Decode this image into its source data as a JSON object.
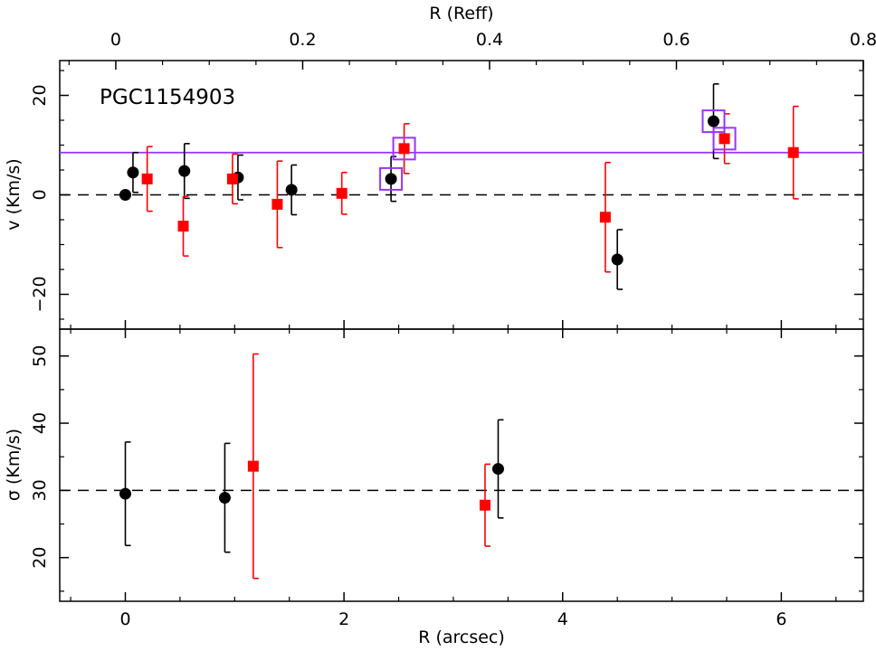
{
  "chart_data": {
    "type": "scatter",
    "object_label": "PGC1154903",
    "top_axis": {
      "label": "R (Reff)",
      "ticks": [
        "0",
        "0.2",
        "0.4",
        "0.6",
        "0.8"
      ],
      "tick_values": [
        0,
        0.2,
        0.4,
        0.6,
        0.8
      ],
      "xlim": [
        -0.06,
        0.8
      ]
    },
    "bottom_axis": {
      "label": "R (arcsec)",
      "ticks": [
        "0",
        "2",
        "4",
        "6"
      ],
      "tick_values": [
        0,
        2,
        4,
        6
      ],
      "xlim": [
        -0.6,
        6.75
      ]
    },
    "panels": [
      {
        "id": "velocity",
        "ylabel": "v (Km/s)",
        "ylim": [
          -27,
          27
        ],
        "yticks": [
          "−20",
          "0",
          "20"
        ],
        "ytick_values": [
          -20,
          0,
          20
        ],
        "reference_line": 0,
        "fit_line": 8.5,
        "fit_line_color": "#9933ff",
        "series": [
          {
            "marker": "circle",
            "color": "#000000",
            "points": [
              {
                "x": 0.0,
                "y": 0.0,
                "err": 0
              },
              {
                "x": 0.07,
                "y": 4.5,
                "err": 4.0
              },
              {
                "x": 0.54,
                "y": 4.8,
                "err": 5.5
              },
              {
                "x": 1.03,
                "y": 3.5,
                "err": 4.5
              },
              {
                "x": 1.52,
                "y": 1.0,
                "err": 5.0
              },
              {
                "x": 2.43,
                "y": 3.2,
                "err": 4.5
              },
              {
                "x": 4.5,
                "y": -13.0,
                "err": 6.0
              },
              {
                "x": 5.38,
                "y": 14.8,
                "err": 7.5
              }
            ]
          },
          {
            "marker": "square",
            "color": "#ff0000",
            "points": [
              {
                "x": 0.2,
                "y": 3.2,
                "err": 6.5
              },
              {
                "x": 0.53,
                "y": -6.3,
                "err": 6.0
              },
              {
                "x": 0.98,
                "y": 3.2,
                "err": 5.0
              },
              {
                "x": 1.39,
                "y": -1.9,
                "err": 8.7
              },
              {
                "x": 1.98,
                "y": 0.3,
                "err": 4.2
              },
              {
                "x": 2.55,
                "y": 9.3,
                "err": 5.0
              },
              {
                "x": 4.39,
                "y": -4.5,
                "err": 11.0
              },
              {
                "x": 5.48,
                "y": 11.3,
                "err": 5.0
              },
              {
                "x": 6.11,
                "y": 8.5,
                "err": 9.3
              }
            ]
          }
        ],
        "highlighted": [
          {
            "x": 2.43,
            "y": 3.2
          },
          {
            "x": 2.55,
            "y": 9.3
          },
          {
            "x": 5.38,
            "y": 14.8
          },
          {
            "x": 5.48,
            "y": 11.3
          }
        ]
      },
      {
        "id": "dispersion",
        "ylabel": "σ (Km/s)",
        "ylim": [
          13.5,
          54
        ],
        "yticks": [
          "20",
          "30",
          "40",
          "50"
        ],
        "ytick_values": [
          20,
          30,
          40,
          50
        ],
        "reference_line": 30,
        "series": [
          {
            "marker": "circle",
            "color": "#000000",
            "points": [
              {
                "x": 0.0,
                "y": 29.5,
                "err": 7.7
              },
              {
                "x": 0.91,
                "y": 28.9,
                "err": 8.1
              },
              {
                "x": 3.41,
                "y": 33.2,
                "err": 7.3
              }
            ]
          },
          {
            "marker": "square",
            "color": "#ff0000",
            "points": [
              {
                "x": 1.17,
                "y": 33.6,
                "err": 16.7
              },
              {
                "x": 3.29,
                "y": 27.8,
                "err": 6.1
              }
            ]
          }
        ]
      }
    ]
  }
}
